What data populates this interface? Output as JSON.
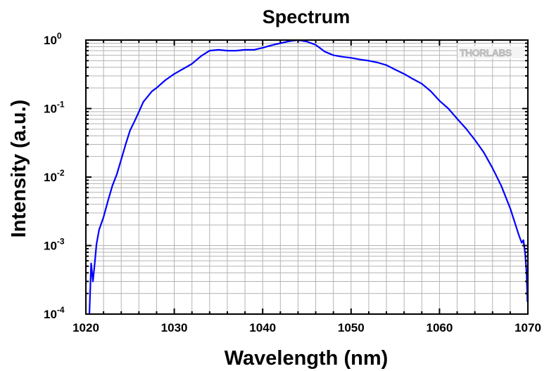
{
  "chart_data": {
    "type": "line",
    "title": "Spectrum",
    "xlabel": "Wavelength (nm)",
    "ylabel": "Intensity (a.u.)",
    "xlim": [
      1020,
      1070
    ],
    "ylim": [
      0.0001,
      1
    ],
    "yscale": "log",
    "grid": true,
    "x_ticks": [
      "1020",
      "1030",
      "1040",
      "1050",
      "1060",
      "1070"
    ],
    "y_ticks": [
      {
        "base": "10",
        "exp": "-4"
      },
      {
        "base": "10",
        "exp": "-3"
      },
      {
        "base": "10",
        "exp": "-2"
      },
      {
        "base": "10",
        "exp": "-1"
      },
      {
        "base": "10",
        "exp": "0"
      }
    ],
    "series": [
      {
        "color": "#0000ff",
        "x": [
          1020.4,
          1020.6,
          1020.8,
          1021.0,
          1021.2,
          1021.5,
          1022.0,
          1022.5,
          1023.0,
          1023.5,
          1024.0,
          1024.5,
          1025.0,
          1025.5,
          1026.0,
          1026.5,
          1027.0,
          1027.5,
          1028.0,
          1029.0,
          1030.0,
          1031.0,
          1032.0,
          1033.0,
          1034.0,
          1035.0,
          1036.0,
          1037.0,
          1038.0,
          1039.0,
          1040.0,
          1041.0,
          1042.0,
          1043.0,
          1044.0,
          1045.0,
          1046.0,
          1047.0,
          1048.0,
          1049.0,
          1050.0,
          1051.0,
          1052.0,
          1053.0,
          1054.0,
          1055.0,
          1056.0,
          1057.0,
          1058.0,
          1059.0,
          1060.0,
          1061.0,
          1062.0,
          1063.0,
          1064.0,
          1065.0,
          1066.0,
          1067.0,
          1068.0,
          1068.5,
          1069.0,
          1069.3,
          1069.5,
          1069.7,
          1069.85,
          1069.95
        ],
        "y": [
          0.0001,
          0.00055,
          0.0003,
          0.00055,
          0.00105,
          0.0017,
          0.0026,
          0.0045,
          0.0075,
          0.011,
          0.018,
          0.03,
          0.048,
          0.065,
          0.09,
          0.125,
          0.15,
          0.18,
          0.2,
          0.26,
          0.32,
          0.38,
          0.45,
          0.58,
          0.7,
          0.72,
          0.7,
          0.7,
          0.72,
          0.72,
          0.77,
          0.84,
          0.9,
          0.96,
          1.0,
          0.95,
          0.85,
          0.68,
          0.6,
          0.57,
          0.55,
          0.52,
          0.5,
          0.47,
          0.43,
          0.37,
          0.32,
          0.27,
          0.23,
          0.18,
          0.13,
          0.1,
          0.071,
          0.051,
          0.035,
          0.023,
          0.0135,
          0.0074,
          0.0035,
          0.0022,
          0.0014,
          0.0011,
          0.0012,
          0.00075,
          0.0004,
          0.00015
        ]
      }
    ]
  },
  "logo": {
    "text": "THORLABS"
  }
}
